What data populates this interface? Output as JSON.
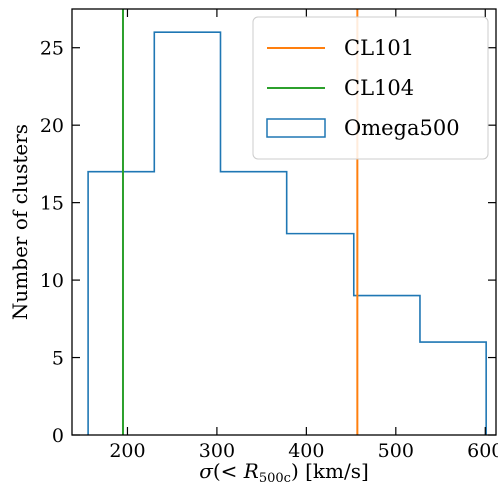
{
  "chart_data": {
    "type": "histogram",
    "title": "",
    "xlabel": "σ(< R500c) [km/s]",
    "ylabel": "Number of clusters",
    "xlim": [
      138,
      612
    ],
    "ylim": [
      0,
      27.5
    ],
    "xticks": [
      200,
      300,
      400,
      500,
      600
    ],
    "yticks": [
      0,
      5,
      10,
      15,
      20,
      25
    ],
    "grid": false,
    "legend_position": "top-right",
    "histogram": {
      "name": "Omega500",
      "color": "#1f77b4",
      "bin_edges": [
        156,
        230,
        304,
        378,
        453,
        527,
        601
      ],
      "counts": [
        17,
        26,
        17,
        13,
        9,
        6
      ]
    },
    "vertical_lines": [
      {
        "name": "CL101",
        "x": 457,
        "color": "#ff7f0e"
      },
      {
        "name": "CL104",
        "x": 195,
        "color": "#2ca02c"
      }
    ],
    "legend": [
      "CL101",
      "CL104",
      "Omega500"
    ]
  }
}
